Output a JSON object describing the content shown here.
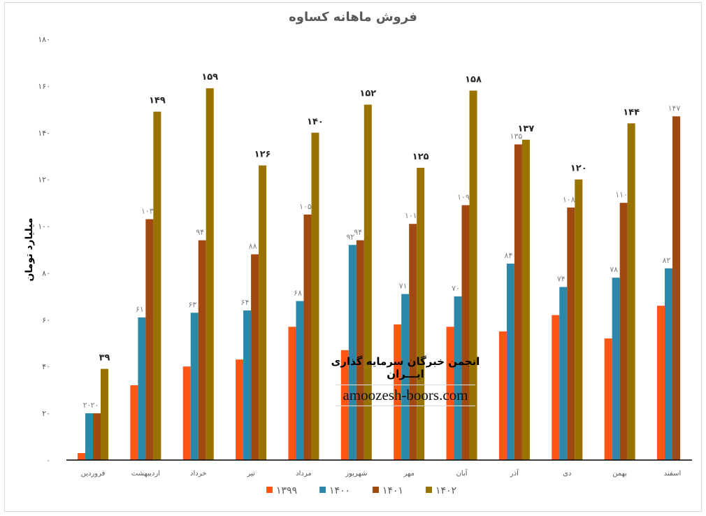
{
  "chart_data": {
    "type": "bar",
    "title": "فروش ماهانه کساوه",
    "ylabel": "میلیارد تومان",
    "xlabel": "",
    "ylim": [
      0,
      180
    ],
    "yticks": [
      0,
      20,
      40,
      60,
      80,
      100,
      120,
      140,
      160,
      180
    ],
    "grid": false,
    "legend_position": "bottom",
    "categories": [
      "فروردین",
      "اردیبهشت",
      "خرداد",
      "تیر",
      "مرداد",
      "شهریور",
      "مهر",
      "آبان",
      "آذر",
      "دی",
      "بهمن",
      "اسفند"
    ],
    "series": [
      {
        "name": "1399",
        "color": "#FF5515",
        "labeled": false,
        "values": [
          3,
          32,
          40,
          43,
          57,
          47,
          58,
          57,
          55,
          62,
          52,
          66
        ]
      },
      {
        "name": "1400",
        "color": "#2B88A8",
        "labeled": true,
        "values": [
          20,
          61,
          63,
          64,
          68,
          92,
          71,
          70,
          84,
          74,
          78,
          82
        ]
      },
      {
        "name": "1401",
        "color": "#A04A12",
        "labeled": true,
        "values": [
          20,
          103,
          94,
          88,
          105,
          94,
          101,
          109,
          135,
          108,
          110,
          147
        ]
      },
      {
        "name": "1402",
        "color": "#997300",
        "labeled": true,
        "bold": true,
        "values": [
          39,
          149,
          159,
          126,
          140,
          152,
          125,
          158,
          137,
          120,
          144,
          null
        ]
      }
    ]
  },
  "watermark": {
    "line1": "انجمن خبرگان سرمایه گذاری ایـــران",
    "line2": "amoozesh-boors.com"
  }
}
